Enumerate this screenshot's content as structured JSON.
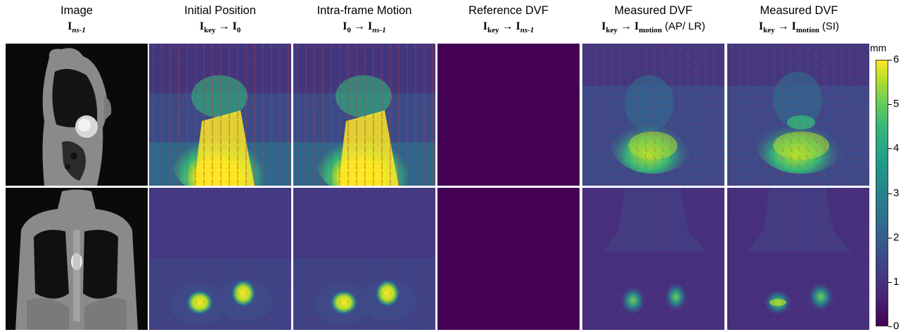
{
  "columns": [
    {
      "title": "Image",
      "sub": {
        "base": "I",
        "sub": "ns-1"
      }
    },
    {
      "title": "Initial Position",
      "sub": {
        "from": "I",
        "from_sub": "key",
        "arrow": "→",
        "to": "I",
        "to_sub": "0"
      }
    },
    {
      "title": "Intra-frame Motion",
      "sub": {
        "from": "I",
        "from_sub": "0",
        "arrow": "→",
        "to": "I",
        "to_sub": "ns-1"
      }
    },
    {
      "title": "Reference DVF",
      "sub": {
        "from": "I",
        "from_sub": "key",
        "arrow": "→",
        "to": "I",
        "to_sub": "ns-1"
      }
    },
    {
      "title": "Measured DVF",
      "sub": {
        "from": "I",
        "from_sub": "key",
        "arrow": "→",
        "to": "I",
        "to_sub": "motion",
        "suffix": "(AP/ LR)"
      }
    },
    {
      "title": "Measured DVF",
      "sub": {
        "from": "I",
        "from_sub": "key",
        "arrow": "→",
        "to": "I",
        "to_sub": "motion",
        "suffix": "(SI)"
      }
    }
  ],
  "colorbar": {
    "unit": "mm",
    "ticks": [
      "0",
      "1",
      "2",
      "3",
      "4",
      "5",
      "6"
    ],
    "range": [
      0,
      6
    ],
    "colormap": "viridis"
  },
  "colors": {
    "background_dark": "#440154",
    "high": "#fde725",
    "arrow": "#c0392b"
  }
}
